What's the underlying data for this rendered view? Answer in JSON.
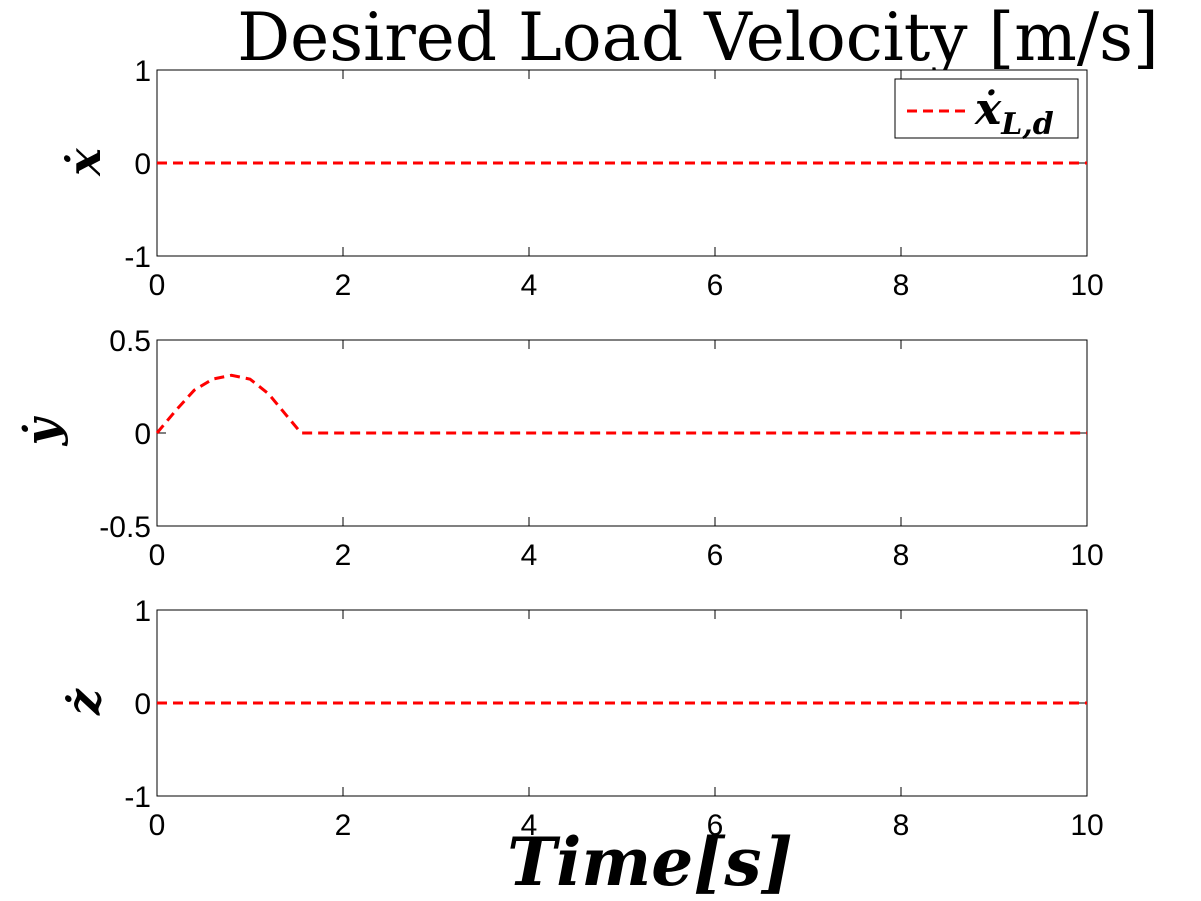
{
  "chart_data": [
    {
      "type": "line",
      "title": "Desired Load Velocity [m/s]",
      "ylabel": "ẋ",
      "xlabel": "",
      "xlim": [
        0,
        10
      ],
      "ylim": [
        -1,
        1
      ],
      "xticks": [
        "0",
        "2",
        "4",
        "6",
        "8",
        "10"
      ],
      "yticks": [
        "-1",
        "0",
        "1"
      ],
      "legend": {
        "entries": [
          "ẋ_{L,d}"
        ],
        "placement": "top-right"
      },
      "series": [
        {
          "name": "ẋ_{L,d}",
          "color": "#ff0000",
          "style": "dashed",
          "x": [
            0,
            10
          ],
          "y": [
            0,
            0
          ]
        }
      ]
    },
    {
      "type": "line",
      "ylabel": "ẏ",
      "xlabel": "",
      "xlim": [
        0,
        10
      ],
      "ylim": [
        -0.5,
        0.5
      ],
      "xticks": [
        "0",
        "2",
        "4",
        "6",
        "8",
        "10"
      ],
      "yticks": [
        "-0.5",
        "0",
        "0.5"
      ],
      "series": [
        {
          "color": "#ff0000",
          "style": "dashed",
          "x": [
            0,
            0.2,
            0.4,
            0.6,
            0.8,
            1.0,
            1.2,
            1.4,
            1.55,
            10
          ],
          "y": [
            0,
            0.12,
            0.23,
            0.29,
            0.31,
            0.29,
            0.21,
            0.09,
            0.0,
            0.0
          ]
        }
      ]
    },
    {
      "type": "line",
      "ylabel": "ż",
      "xlabel": "Time[s]",
      "xlim": [
        0,
        10
      ],
      "ylim": [
        -1,
        1
      ],
      "xticks": [
        "0",
        "2",
        "4",
        "6",
        "8",
        "10"
      ],
      "yticks": [
        "-1",
        "0",
        "1"
      ],
      "series": [
        {
          "color": "#ff0000",
          "style": "dashed",
          "x": [
            0,
            10
          ],
          "y": [
            0,
            0
          ]
        }
      ]
    }
  ]
}
